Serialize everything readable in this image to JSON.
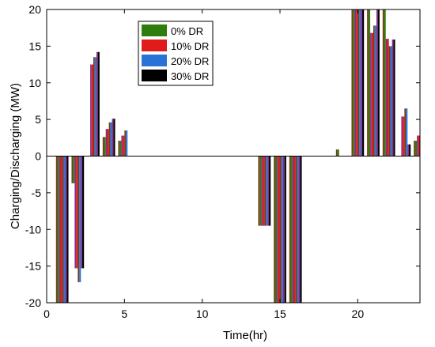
{
  "chart_data": {
    "type": "bar",
    "title": "",
    "xlabel": "Time(hr)",
    "ylabel": "Charging/Discharging (MW)",
    "xlim": [
      0,
      24
    ],
    "ylim": [
      -20,
      20
    ],
    "xticks": [
      "0",
      "5",
      "10",
      "15",
      "20"
    ],
    "yticks": [
      "-20",
      "-15",
      "-10",
      "-5",
      "0",
      "5",
      "10",
      "15",
      "20"
    ],
    "grid": false,
    "legend_position": "top-left",
    "hours": [
      1,
      2,
      3,
      4,
      5,
      6,
      7,
      8,
      9,
      10,
      11,
      12,
      13,
      14,
      15,
      16,
      17,
      18,
      19,
      20,
      21,
      22,
      23,
      24
    ],
    "series": [
      {
        "name": "0% DR",
        "color": "#2e7d0f",
        "values": [
          -20,
          -3.7,
          0,
          2.6,
          2.1,
          0,
          0,
          0,
          0,
          0,
          0,
          0,
          0,
          -9.5,
          -20,
          -20,
          0,
          0,
          0.9,
          20,
          20,
          20,
          0,
          2.1
        ]
      },
      {
        "name": "10% DR",
        "color": "#e01b1b",
        "values": [
          -20,
          -15.3,
          12.5,
          3.7,
          2.8,
          0,
          0,
          0,
          0,
          0,
          0,
          0,
          0,
          -9.5,
          -20,
          -20,
          0,
          0,
          0,
          20,
          16.8,
          16,
          5.4,
          2.8
        ]
      },
      {
        "name": "20% DR",
        "color": "#2a73d6",
        "values": [
          -20,
          -17.2,
          13.5,
          4.6,
          3.5,
          0,
          0,
          0,
          0,
          0,
          0,
          0,
          0,
          -9.5,
          -20,
          -20,
          0,
          0,
          0,
          20,
          17.8,
          15,
          6.5,
          0
        ]
      },
      {
        "name": "30% DR",
        "color": "#000000",
        "values": [
          -20,
          -15.3,
          14.2,
          5.1,
          0,
          0,
          0,
          0,
          0,
          0,
          0,
          0,
          0,
          -9.5,
          -20,
          -20,
          0,
          0,
          0,
          20,
          20,
          15.9,
          1.6,
          0
        ]
      }
    ],
    "distortion_colors": [
      "#7a3a10",
      "#8e2a8a"
    ]
  }
}
